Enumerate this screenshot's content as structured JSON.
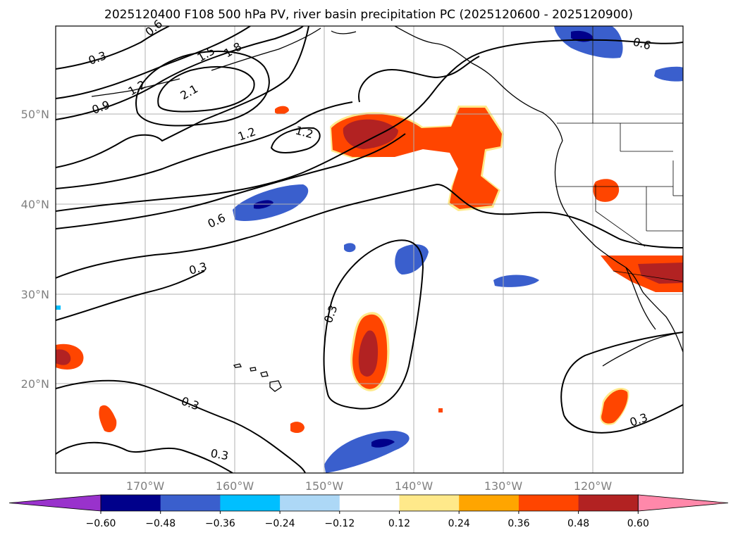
{
  "title": "2025120400 F108 500 hPa PV, river basin precipitation PC (2025120600 - 2025120900)",
  "lat_labels": [
    "50°N",
    "40°N",
    "30°N",
    "20°N"
  ],
  "lon_labels": [
    "170°W",
    "160°W",
    "150°W",
    "140°W",
    "130°W",
    "120°W"
  ],
  "colorbar": {
    "ticks": [
      "−0.60",
      "−0.48",
      "−0.36",
      "−0.24",
      "−0.12",
      "0.12",
      "0.24",
      "0.36",
      "0.48",
      "0.60"
    ],
    "colors": [
      "#9932cc",
      "#00008b",
      "#3a5fcd",
      "#00bfff",
      "#add8f6",
      "#ffffff",
      "#ffe98a",
      "#ffa500",
      "#ff4500",
      "#b22222",
      "#ff88aa"
    ]
  },
  "contour_labels": [
    "0.3",
    "1.5",
    "1.8",
    "0.6",
    "1.2",
    "2.1",
    "0.9",
    "1.2",
    "1.2",
    "0.6",
    "0.3",
    "0.3",
    "0.3",
    "0.3",
    "0.3",
    "0.6"
  ],
  "colors": {
    "negative_strong": "#00008b",
    "negative": "#3a5fcd",
    "negative_light": "#00bfff",
    "positive_light": "#ffe98a",
    "positive": "#ff4500",
    "positive_strong": "#b22222"
  }
}
